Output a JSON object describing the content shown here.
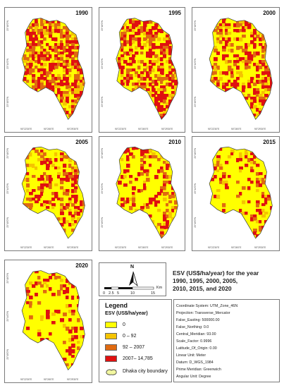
{
  "panels": [
    {
      "year": "1990",
      "lats": [
        "23°48'0\"N",
        "23°44'0\"N",
        "23°40'0\"N"
      ],
      "lons": [
        "90°22'30\"E",
        "90°26'0\"E",
        "90°29'30\"E"
      ]
    },
    {
      "year": "1995",
      "lats": [
        "23°48'0\"N",
        "23°44'0\"N",
        "23°40'0\"N"
      ],
      "lons": [
        "90°22'30\"E",
        "90°26'0\"E",
        "90°29'30\"E"
      ]
    },
    {
      "year": "2000",
      "lats": [
        "23°48'0\"N",
        "23°44'0\"N",
        "23°40'0\"N"
      ],
      "lons": [
        "90°22'30\"E",
        "90°26'0\"E",
        "90°29'30\"E"
      ]
    },
    {
      "year": "2005",
      "lats": [
        "23°48'0\"N",
        "23°44'0\"N",
        "23°40'0\"N"
      ],
      "lons": [
        "90°22'30\"E",
        "90°26'0\"E",
        "90°29'30\"E"
      ]
    },
    {
      "year": "2010",
      "lats": [
        "23°48'0\"N",
        "23°44'0\"N",
        "23°40'0\"N"
      ],
      "lons": [
        "90°22'30\"E",
        "90°26'0\"E",
        "90°29'30\"E"
      ]
    },
    {
      "year": "2015",
      "lats": [
        "23°48'0\"N",
        "23°44'0\"N",
        "23°40'0\"N"
      ],
      "lons": [
        "90°22'30\"E",
        "90°26'0\"E",
        "90°29'30\"E"
      ]
    },
    {
      "year": "2020",
      "lats": [
        "23°48'0\"N",
        "23°44'0\"N",
        "23°40'0\"N"
      ],
      "lons": [
        "90°22'30\"E",
        "90°26'0\"E",
        "90°29'30\"E"
      ]
    }
  ],
  "map_intensity": [
    0.52,
    0.42,
    0.36,
    0.24,
    0.21,
    0.14,
    0.12
  ],
  "north_label": "N",
  "scale_bar": {
    "ticks": [
      "0",
      "2.5",
      "5",
      "10",
      "15"
    ],
    "unit": "Km"
  },
  "title": [
    "ESV (US$/ha/year)  for the year",
    "1990, 1995, 2000, 2005,",
    "2010,  2015, and 2020"
  ],
  "legend": {
    "title": "Legend",
    "subtitle": "ESV (US$/ha/year)",
    "classes": [
      {
        "label": "0",
        "color": "#ffff00"
      },
      {
        "label": "0 – 92",
        "color": "#f5c400"
      },
      {
        "label": "92 – 2007",
        "color": "#e06a10"
      },
      {
        "label": "2007– 14,785",
        "color": "#e01010"
      }
    ],
    "boundary_label": "Dhaka city boundary",
    "boundary_fill": "#f2f7a0"
  },
  "coordinate_system": [
    "Coordinate System:  UTM_Zone_46N",
    "Projection:  Transverse_Mercator",
    "False_Easting:  500000.00",
    "False_Northing:  0.0",
    "Central_Meridian:  93.00",
    "Scale_Factor:  0.9996",
    "Latitude_Of_Origin:  0.00",
    "Linear Unit:   Meter",
    "Datum:    D_WGS_1984",
    "Prime Meridian:   Greenwich",
    "Angular Unit:   Degree"
  ]
}
